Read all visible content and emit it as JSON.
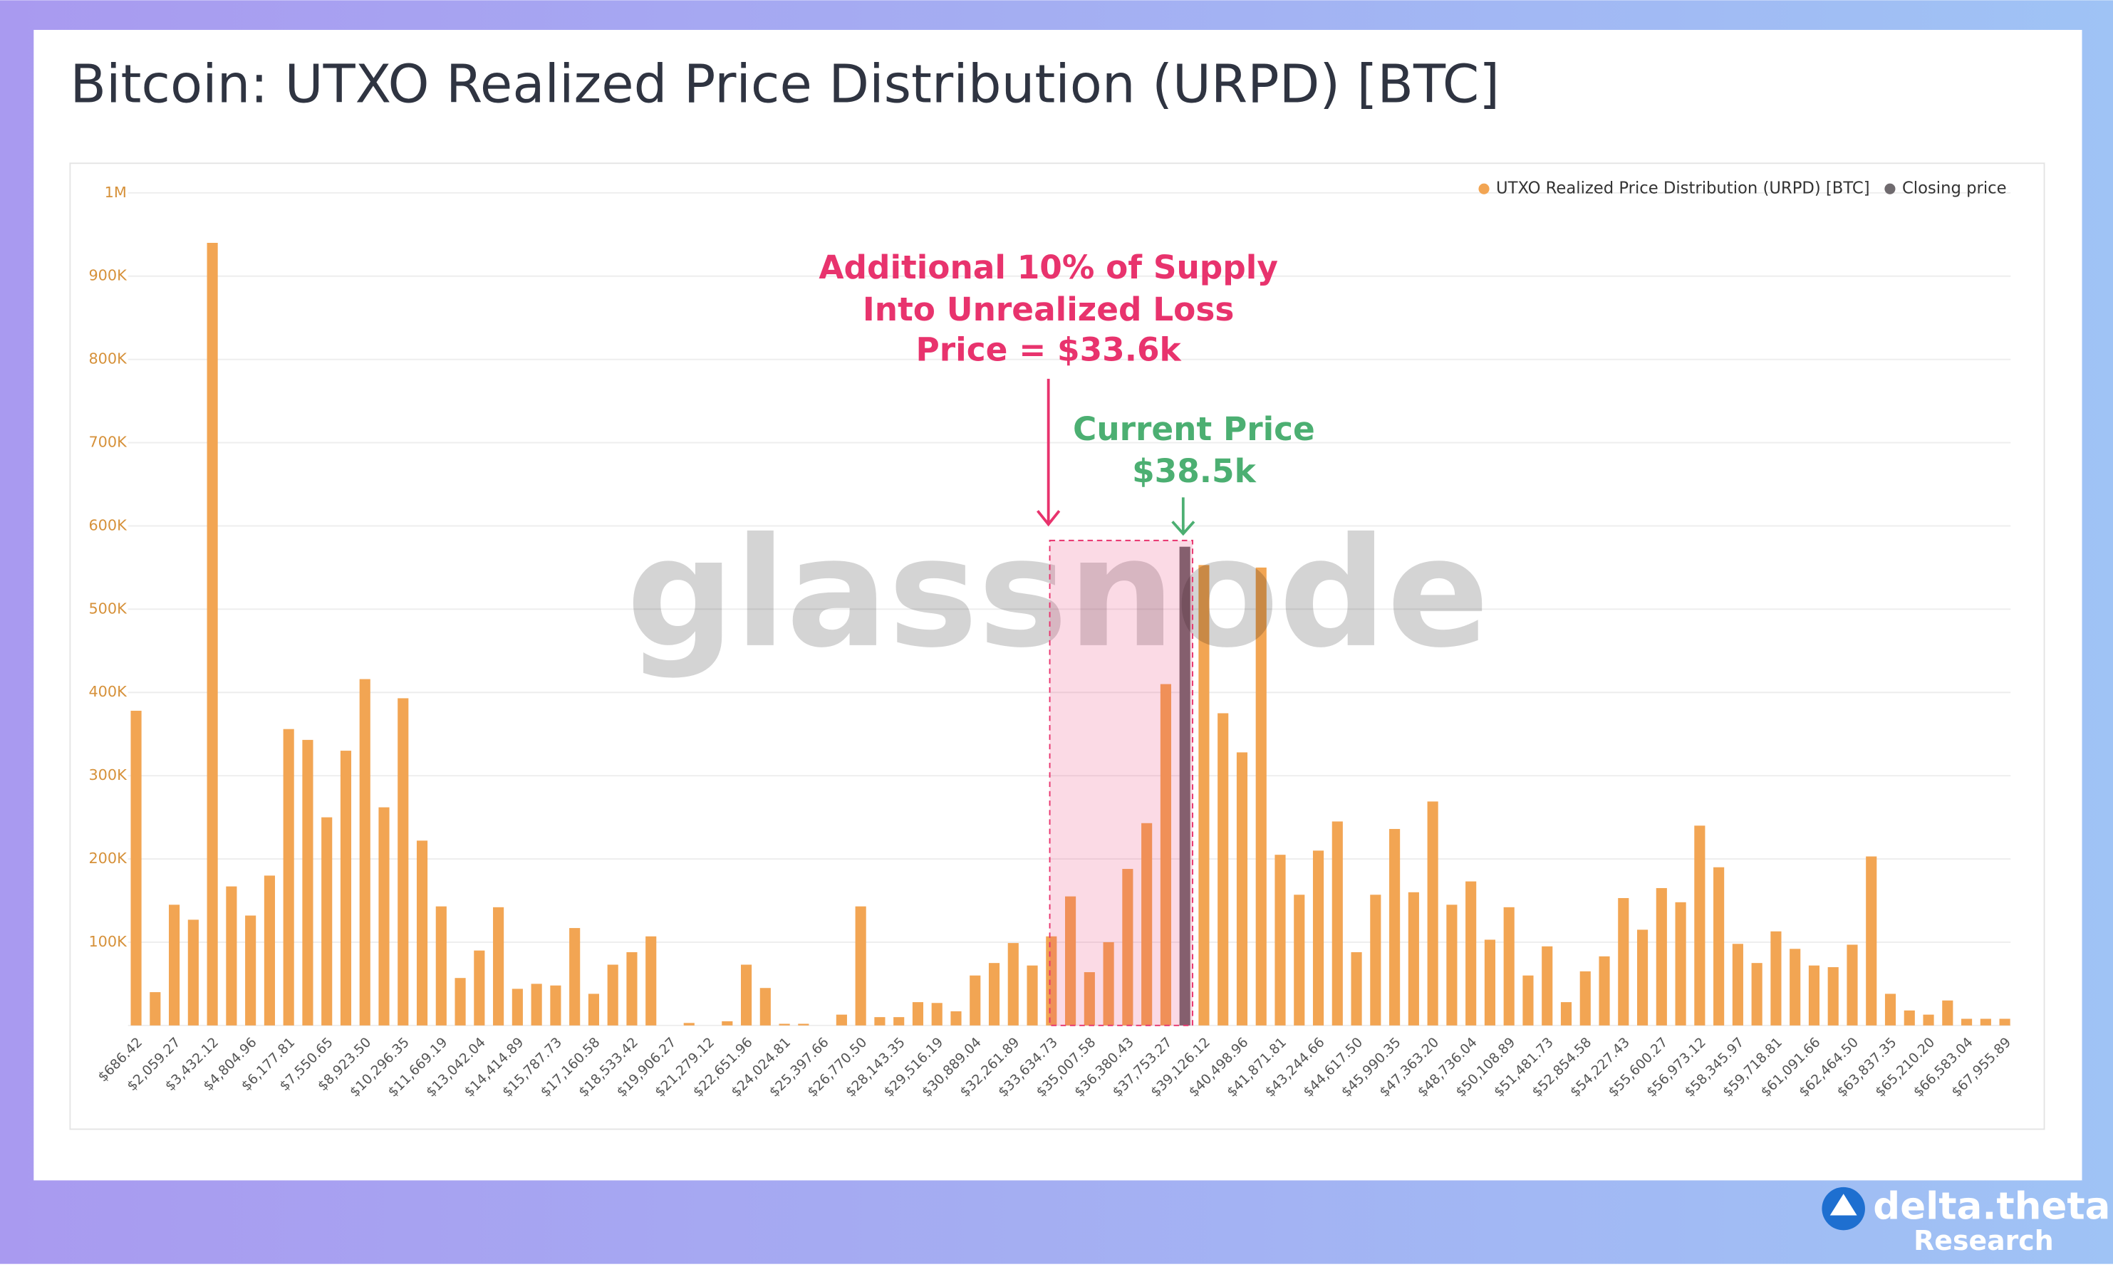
{
  "chart_data": {
    "type": "bar",
    "title": "Bitcoin: UTXO Realized Price Distribution (URPD) [BTC]",
    "categories": [
      "$686.42",
      null,
      "$2,059.27",
      null,
      "$3,432.12",
      null,
      "$4,804.96",
      null,
      "$6,177.81",
      null,
      "$7,550.65",
      null,
      "$8,923.50",
      null,
      "$10,296.35",
      null,
      "$11,669.19",
      null,
      "$13,042.04",
      null,
      "$14,414.89",
      null,
      "$15,787.73",
      null,
      "$17,160.58",
      null,
      "$18,533.42",
      null,
      "$19,906.27",
      null,
      "$21,279.12",
      null,
      "$22,651.96",
      null,
      "$24,024.81",
      null,
      "$25,397.66",
      null,
      "$26,770.50",
      null,
      "$28,143.35",
      null,
      "$29,516.19",
      null,
      "$30,889.04",
      null,
      "$32,261.89",
      null,
      "$33,634.73",
      null,
      "$35,007.58",
      null,
      "$36,380.43",
      null,
      "$37,753.27",
      null,
      "$39,126.12",
      null,
      "$40,498.96",
      null,
      "$41,871.81",
      null,
      "$43,244.66",
      null,
      "$44,617.50",
      null,
      "$45,990.35",
      null,
      "$47,363.20",
      null,
      "$48,736.04",
      null,
      "$50,108.89",
      null,
      "$51,481.73",
      null,
      "$52,854.58",
      null,
      "$54,227.43",
      null,
      "$55,600.27",
      null,
      "$56,973.12",
      null,
      "$58,345.97",
      null,
      "$59,718.81",
      null,
      "$61,091.66",
      null,
      "$62,464.50",
      null,
      "$63,837.35",
      null,
      "$65,210.20",
      null,
      "$66,583.04",
      null,
      "$67,955.89"
    ],
    "series": [
      {
        "name": "UTXO Realized Price Distribution (URPD) [BTC]",
        "color": "#f2a553",
        "values": [
          378000,
          40000,
          145000,
          127000,
          940000,
          167000,
          132000,
          180000,
          356000,
          343000,
          250000,
          330000,
          416000,
          262000,
          393000,
          222000,
          143000,
          57000,
          90000,
          142000,
          44000,
          50000,
          48000,
          117000,
          38000,
          73000,
          88000,
          107000,
          0,
          3000,
          0,
          5000,
          73000,
          45000,
          2000,
          2000,
          0,
          13000,
          143000,
          10000,
          10000,
          28000,
          27000,
          17000,
          60000,
          75000,
          99000,
          72000,
          107000,
          155000,
          64000,
          100000,
          188000,
          243000,
          410000,
          null,
          553000,
          375000,
          328000,
          550000,
          205000,
          157000,
          210000,
          245000,
          88000,
          157000,
          236000,
          160000,
          269000,
          145000,
          173000,
          103000,
          142000,
          60000,
          95000,
          28000,
          65000,
          83000,
          153000,
          115000,
          165000,
          148000,
          240000,
          190000,
          98000,
          75000,
          113000,
          92000,
          72000,
          70000,
          97000,
          203000,
          38000,
          18000,
          13000,
          30000,
          8000,
          8000,
          8000
        ]
      },
      {
        "name": "Closing price",
        "color": "#6f6a6e",
        "values": [
          null,
          null,
          null,
          null,
          null,
          null,
          null,
          null,
          null,
          null,
          null,
          null,
          null,
          null,
          null,
          null,
          null,
          null,
          null,
          null,
          null,
          null,
          null,
          null,
          null,
          null,
          null,
          null,
          null,
          null,
          null,
          null,
          null,
          null,
          null,
          null,
          null,
          null,
          null,
          null,
          null,
          null,
          null,
          null,
          null,
          null,
          null,
          null,
          null,
          null,
          null,
          null,
          null,
          null,
          null,
          575000,
          null,
          null,
          null,
          null,
          null,
          null,
          null,
          null,
          null,
          null,
          null,
          null,
          null,
          null,
          null,
          null,
          null,
          null,
          null,
          null,
          null,
          null,
          null,
          null,
          null,
          null,
          null,
          null,
          null,
          null,
          null,
          null,
          null,
          null,
          null,
          null,
          null,
          null,
          null,
          null,
          null,
          null,
          null
        ]
      }
    ],
    "ylim": [
      0,
      1000000
    ],
    "yticks": [
      {
        "value": 100000,
        "label": "100K"
      },
      {
        "value": 200000,
        "label": "200K"
      },
      {
        "value": 300000,
        "label": "300K"
      },
      {
        "value": 400000,
        "label": "400K"
      },
      {
        "value": 500000,
        "label": "500K"
      },
      {
        "value": 600000,
        "label": "600K"
      },
      {
        "value": 700000,
        "label": "700K"
      },
      {
        "value": 800000,
        "label": "800K"
      },
      {
        "value": 900000,
        "label": "900K"
      },
      {
        "value": 1000000,
        "label": "1M"
      }
    ],
    "grid": true,
    "legend": "top-right",
    "annotations": {
      "loss": [
        "Additional 10% of Supply",
        "Into Unrealized Loss",
        "Price = $33.6k"
      ],
      "current": [
        "Current Price",
        "$38.5k"
      ]
    },
    "watermark": "glassnode"
  },
  "branding": {
    "name": "delta.theta",
    "subtitle": "Research"
  }
}
